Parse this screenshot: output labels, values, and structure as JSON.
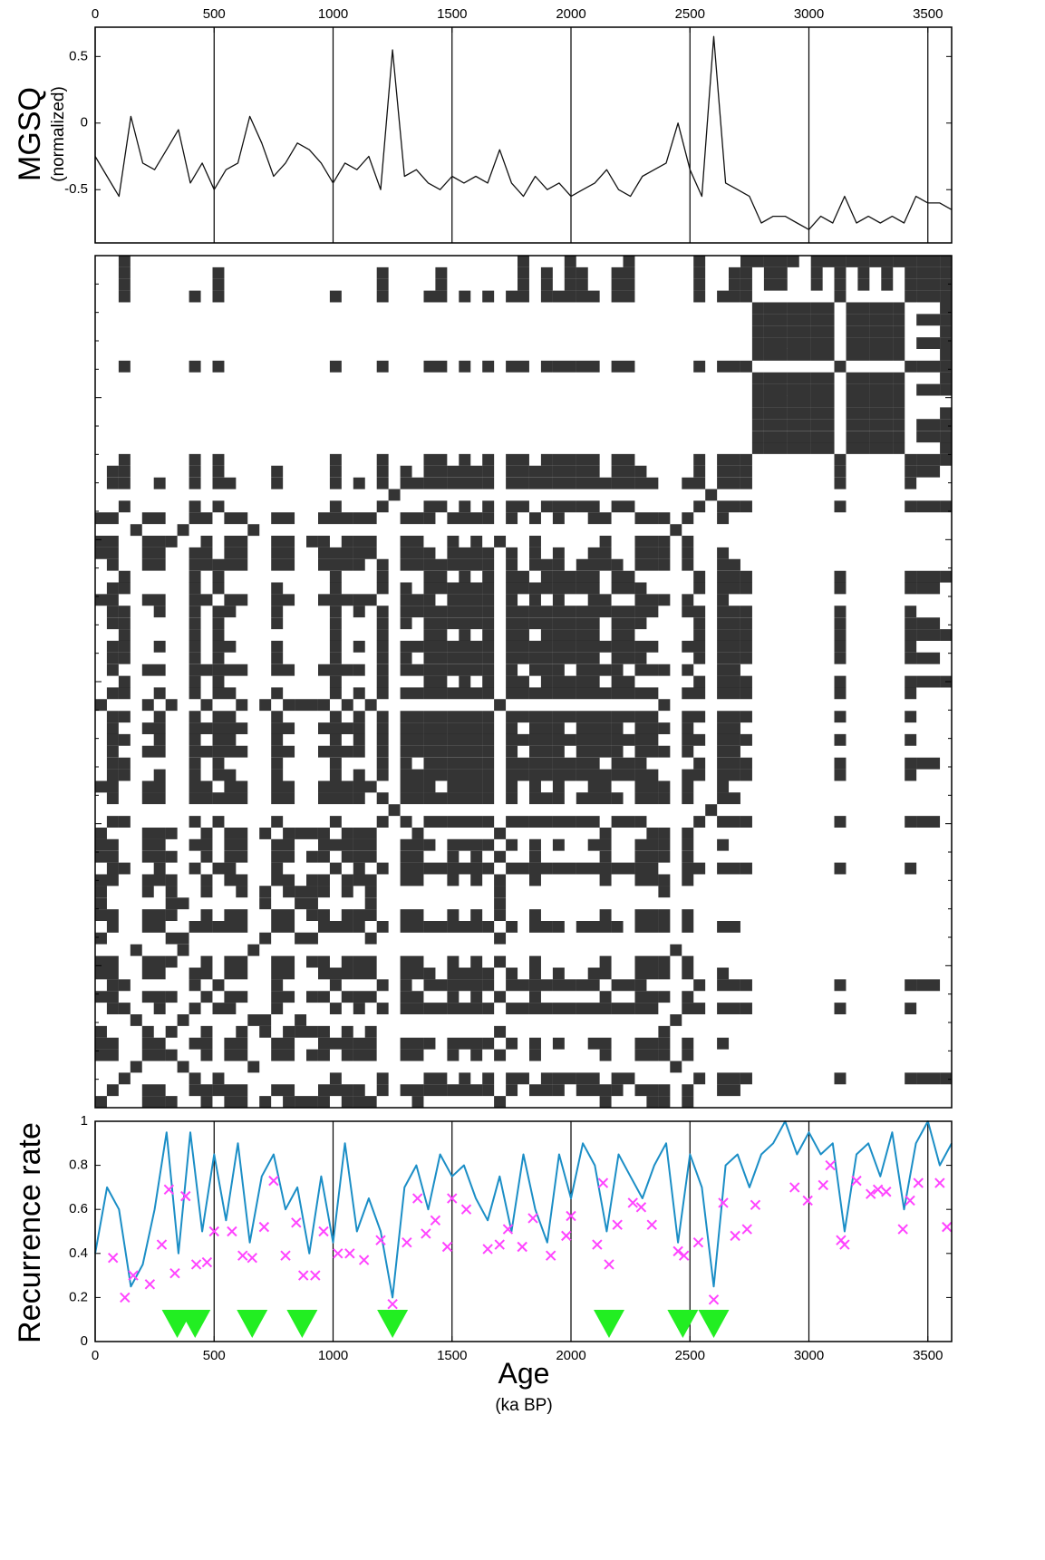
{
  "chart_data": [
    {
      "type": "line",
      "ylabel": "MGSQ",
      "ylabel_sub": "(normalized)",
      "x": [
        0,
        50,
        100,
        150,
        200,
        250,
        300,
        350,
        400,
        450,
        500,
        550,
        600,
        650,
        700,
        750,
        800,
        850,
        900,
        950,
        1000,
        1050,
        1100,
        1150,
        1200,
        1250,
        1300,
        1350,
        1400,
        1450,
        1500,
        1550,
        1600,
        1650,
        1700,
        1750,
        1800,
        1850,
        1900,
        1950,
        2000,
        2050,
        2100,
        2150,
        2200,
        2250,
        2300,
        2350,
        2400,
        2450,
        2500,
        2550,
        2600,
        2650,
        2700,
        2750,
        2800,
        2850,
        2900,
        2950,
        3000,
        3050,
        3100,
        3150,
        3200,
        3250,
        3300,
        3350,
        3400,
        3450,
        3500,
        3550,
        3600
      ],
      "series": [
        {
          "color": "#111111",
          "values": [
            -0.25,
            -0.4,
            -0.55,
            0.05,
            -0.3,
            -0.35,
            -0.2,
            -0.05,
            -0.45,
            -0.3,
            -0.5,
            -0.35,
            -0.3,
            0.05,
            -0.15,
            -0.4,
            -0.3,
            -0.15,
            -0.2,
            -0.3,
            -0.45,
            -0.3,
            -0.35,
            -0.25,
            -0.5,
            0.55,
            -0.4,
            -0.35,
            -0.45,
            -0.5,
            -0.4,
            -0.45,
            -0.4,
            -0.45,
            -0.2,
            -0.45,
            -0.55,
            -0.4,
            -0.5,
            -0.45,
            -0.55,
            -0.5,
            -0.45,
            -0.35,
            -0.5,
            -0.55,
            -0.4,
            -0.35,
            -0.3,
            0.0,
            -0.35,
            -0.55,
            0.65,
            -0.45,
            -0.5,
            -0.55,
            -0.75,
            -0.7,
            -0.7,
            -0.75,
            -0.8,
            -0.7,
            -0.75,
            -0.55,
            -0.75,
            -0.7,
            -0.75,
            -0.7,
            -0.75,
            -0.55,
            -0.6,
            -0.6,
            -0.65
          ]
        }
      ],
      "xlim": [
        0,
        3600
      ],
      "xticks": [
        0,
        500,
        1000,
        1500,
        2000,
        2500,
        3000,
        3500
      ],
      "ylim": [
        -0.9,
        0.72
      ],
      "yticks": [
        0.5,
        0,
        -0.5
      ],
      "grid": true,
      "xaxis": "top"
    },
    {
      "type": "recurrence"
    },
    {
      "type": "line",
      "xlabel": "Age",
      "xlabel_sub": "(ka BP)",
      "ylabel": "Recurrence rate",
      "x": [
        0,
        50,
        100,
        150,
        200,
        250,
        300,
        350,
        400,
        450,
        500,
        550,
        600,
        650,
        700,
        750,
        800,
        850,
        900,
        950,
        1000,
        1050,
        1100,
        1150,
        1200,
        1250,
        1300,
        1350,
        1400,
        1450,
        1500,
        1550,
        1600,
        1650,
        1700,
        1750,
        1800,
        1850,
        1900,
        1950,
        2000,
        2050,
        2100,
        2150,
        2200,
        2250,
        2300,
        2350,
        2400,
        2450,
        2500,
        2550,
        2600,
        2650,
        2700,
        2750,
        2800,
        2850,
        2900,
        2950,
        3000,
        3050,
        3100,
        3150,
        3200,
        3250,
        3300,
        3350,
        3400,
        3450,
        3500,
        3550,
        3600
      ],
      "series": [
        {
          "color": "#1b8ec6",
          "values": [
            0.4,
            0.7,
            0.6,
            0.25,
            0.35,
            0.6,
            0.95,
            0.4,
            0.95,
            0.5,
            0.85,
            0.55,
            0.9,
            0.45,
            0.75,
            0.85,
            0.6,
            0.7,
            0.4,
            0.75,
            0.45,
            0.9,
            0.5,
            0.65,
            0.5,
            0.2,
            0.7,
            0.8,
            0.6,
            0.85,
            0.75,
            0.8,
            0.65,
            0.55,
            0.75,
            0.5,
            0.85,
            0.6,
            0.45,
            0.85,
            0.65,
            0.9,
            0.8,
            0.5,
            0.85,
            0.75,
            0.65,
            0.8,
            0.9,
            0.45,
            0.85,
            0.7,
            0.25,
            0.8,
            0.85,
            0.7,
            0.85,
            0.9,
            1.0,
            0.85,
            0.95,
            0.85,
            0.9,
            0.5,
            0.85,
            0.9,
            0.75,
            0.95,
            0.6,
            0.9,
            1.0,
            0.8,
            0.9
          ]
        }
      ],
      "points": {
        "type": "scatter",
        "color": "#ff44ff",
        "x": [
          75,
          125,
          160,
          230,
          280,
          310,
          335,
          380,
          425,
          470,
          500,
          575,
          620,
          660,
          710,
          750,
          800,
          845,
          875,
          925,
          960,
          1020,
          1070,
          1130,
          1200,
          1250,
          1310,
          1355,
          1390,
          1430,
          1480,
          1500,
          1560,
          1650,
          1700,
          1735,
          1795,
          1840,
          1915,
          1980,
          2000,
          2110,
          2135,
          2160,
          2195,
          2260,
          2295,
          2340,
          2450,
          2475,
          2535,
          2600,
          2640,
          2690,
          2740,
          2775,
          2940,
          2995,
          3060,
          3090,
          3135,
          3150,
          3200,
          3260,
          3290,
          3325,
          3395,
          3425,
          3460,
          3550,
          3580
        ],
        "y": [
          0.38,
          0.2,
          0.3,
          0.26,
          0.44,
          0.69,
          0.31,
          0.66,
          0.35,
          0.36,
          0.5,
          0.5,
          0.39,
          0.38,
          0.52,
          0.73,
          0.39,
          0.54,
          0.3,
          0.3,
          0.5,
          0.4,
          0.4,
          0.37,
          0.46,
          0.17,
          0.45,
          0.65,
          0.49,
          0.55,
          0.43,
          0.65,
          0.6,
          0.42,
          0.44,
          0.51,
          0.43,
          0.56,
          0.39,
          0.48,
          0.57,
          0.44,
          0.72,
          0.35,
          0.53,
          0.63,
          0.61,
          0.53,
          0.41,
          0.39,
          0.45,
          0.19,
          0.63,
          0.48,
          0.51,
          0.62,
          0.7,
          0.64,
          0.71,
          0.8,
          0.46,
          0.44,
          0.73,
          0.67,
          0.69,
          0.68,
          0.51,
          0.64,
          0.72,
          0.72,
          0.52
        ]
      },
      "events": {
        "color": "#22ee22",
        "x": [
          345,
          420,
          660,
          870,
          1250,
          2160,
          2470,
          2600
        ]
      },
      "xlim": [
        0,
        3600
      ],
      "xticks": [
        0,
        500,
        1000,
        1500,
        2000,
        2500,
        3000,
        3500
      ],
      "ylim": [
        0,
        1
      ],
      "yticks": [
        0,
        0.2,
        0.4,
        0.6,
        0.8,
        1
      ],
      "grid": true,
      "xaxis": "bottom"
    }
  ]
}
